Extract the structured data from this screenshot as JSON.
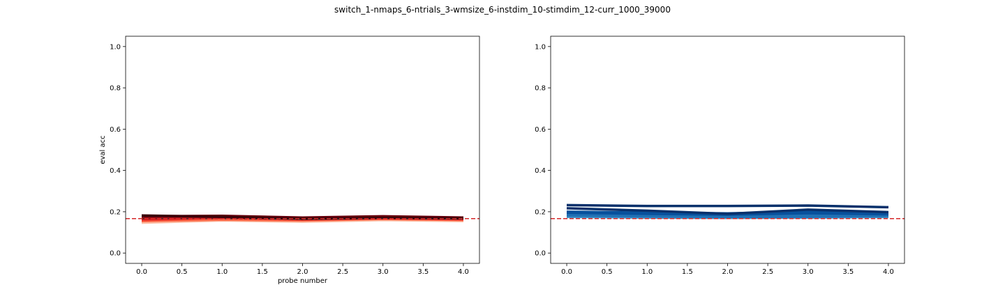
{
  "title": "switch_1-nmaps_6-ntrials_3-wmsize_6-instdim_10-stimdim_12-curr_1000_39000",
  "chart_data": [
    {
      "type": "line",
      "xlabel": "probe number",
      "ylabel": "eval acc",
      "xlim": [
        -0.2,
        4.2
      ],
      "ylim": [
        -0.05,
        1.05
      ],
      "xticks": [
        "0.0",
        "0.5",
        "1.0",
        "1.5",
        "2.0",
        "2.5",
        "3.0",
        "3.5",
        "4.0"
      ],
      "yticks": [
        "0.0",
        "0.2",
        "0.4",
        "0.6",
        "0.8",
        "1.0"
      ],
      "reference_line": {
        "y": 0.1667,
        "color": "#d62728",
        "style": "dashed"
      },
      "x": [
        0,
        1,
        2,
        3,
        4
      ],
      "series": [
        {
          "values": [
            0.147,
            0.158,
            0.152,
            0.16,
            0.155
          ],
          "color": "#fcbba1"
        },
        {
          "values": [
            0.155,
            0.162,
            0.158,
            0.165,
            0.16
          ],
          "color": "#fb6a4a"
        },
        {
          "values": [
            0.16,
            0.17,
            0.162,
            0.168,
            0.163
          ],
          "color": "#ef3b2c"
        },
        {
          "values": [
            0.165,
            0.172,
            0.168,
            0.172,
            0.166
          ],
          "color": "#cb181d"
        },
        {
          "values": [
            0.17,
            0.176,
            0.17,
            0.175,
            0.17
          ],
          "color": "#a50f15"
        },
        {
          "values": [
            0.178,
            0.18,
            0.172,
            0.178,
            0.172
          ],
          "color": "#67000d"
        },
        {
          "values": [
            0.182,
            0.175,
            0.166,
            0.17,
            0.168
          ],
          "color": "#3b0008"
        },
        {
          "values": [
            0.167,
            0.166,
            0.163,
            0.167,
            0.164
          ],
          "color": "#333333",
          "dashed": true
        }
      ]
    },
    {
      "type": "line",
      "xlabel": "",
      "ylabel": "",
      "xlim": [
        -0.2,
        4.2
      ],
      "ylim": [
        -0.05,
        1.05
      ],
      "xticks": [
        "0.0",
        "0.5",
        "1.0",
        "1.5",
        "2.0",
        "2.5",
        "3.0",
        "3.5",
        "4.0"
      ],
      "yticks": [
        "0.0",
        "0.2",
        "0.4",
        "0.6",
        "0.8",
        "1.0"
      ],
      "reference_line": {
        "y": 0.1667,
        "color": "#d62728",
        "style": "dashed"
      },
      "x": [
        0,
        1,
        2,
        3,
        4
      ],
      "series": [
        {
          "values": [
            0.175,
            0.172,
            0.17,
            0.172,
            0.175
          ],
          "color": "#4292c6"
        },
        {
          "values": [
            0.182,
            0.178,
            0.175,
            0.176,
            0.18
          ],
          "color": "#2171b5"
        },
        {
          "values": [
            0.188,
            0.186,
            0.18,
            0.185,
            0.184
          ],
          "color": "#2171b5"
        },
        {
          "values": [
            0.195,
            0.19,
            0.186,
            0.193,
            0.188
          ],
          "color": "#08519c"
        },
        {
          "values": [
            0.2,
            0.196,
            0.192,
            0.2,
            0.193
          ],
          "color": "#08519c"
        },
        {
          "values": [
            0.217,
            0.205,
            0.19,
            0.21,
            0.198
          ],
          "color": "#08306b"
        },
        {
          "values": [
            0.232,
            0.228,
            0.228,
            0.23,
            0.222
          ],
          "color": "#08306b"
        }
      ]
    }
  ]
}
